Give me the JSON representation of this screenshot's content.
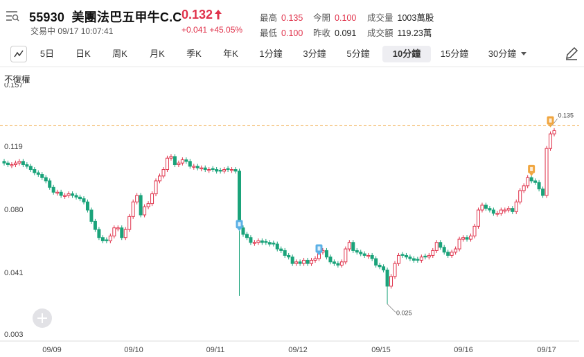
{
  "header": {
    "code": "55930",
    "name": "美團法巴五甲牛C.C",
    "price": "0.132",
    "status": "交易中 09/17 10:07:41",
    "change": "+0.041 +45.05%",
    "stats": [
      {
        "label": "最高",
        "value": "0.135",
        "color": "red"
      },
      {
        "label": "今開",
        "value": "0.100",
        "color": "red"
      },
      {
        "label": "成交量",
        "value": "1003萬股",
        "color": "black"
      },
      {
        "label": "最低",
        "value": "0.100",
        "color": "red"
      },
      {
        "label": "昨收",
        "value": "0.091",
        "color": "black"
      },
      {
        "label": "成交額",
        "value": "119.23萬",
        "color": "black"
      }
    ]
  },
  "tabs": [
    "5日",
    "日K",
    "周K",
    "月K",
    "季K",
    "年K",
    "1分鐘",
    "3分鐘",
    "5分鐘",
    "10分鐘",
    "15分鐘",
    "30分鐘"
  ],
  "active_tab": "10分鐘",
  "adjust_label": "不復權",
  "colors": {
    "up": "#e0324b",
    "down": "#1aa37a",
    "dashed": "#f0a640",
    "marker_blue": "#5bb0e6",
    "marker_orange": "#f0a640"
  },
  "icons": [
    "menu-search-icon",
    "chart-type-icon",
    "dropdown-caret-icon",
    "pen-icon",
    "plus-icon",
    "up-arrow-icon",
    "marker-b-icon",
    "marker-s-icon"
  ],
  "chart_data": {
    "type": "candlestick",
    "x_labels": [
      "09/09",
      "09/10",
      "09/11",
      "09/12",
      "09/15",
      "09/16",
      "09/17"
    ],
    "y_ticks": [
      "0.157",
      "0.119",
      "0.080",
      "0.041",
      "0.003"
    ],
    "ylim": [
      0.003,
      0.157
    ],
    "high_line": 0.135,
    "annotations": [
      {
        "label": "0.135",
        "value": 0.135
      },
      {
        "label": "0.025",
        "value": 0.025
      }
    ],
    "close_path": [
      0.112,
      0.111,
      0.111,
      0.112,
      0.113,
      0.111,
      0.11,
      0.108,
      0.106,
      0.105,
      0.103,
      0.101,
      0.097,
      0.094,
      0.094,
      0.092,
      0.092,
      0.093,
      0.092,
      0.091,
      0.09,
      0.088,
      0.083,
      0.076,
      0.071,
      0.066,
      0.064,
      0.064,
      0.067,
      0.072,
      0.072,
      0.066,
      0.071,
      0.079,
      0.088,
      0.092,
      0.08,
      0.085,
      0.087,
      0.093,
      0.101,
      0.104,
      0.108,
      0.115,
      0.116,
      0.111,
      0.112,
      0.114,
      0.113,
      0.11,
      0.11,
      0.109,
      0.109,
      0.108,
      0.108,
      0.108,
      0.107,
      0.107,
      0.108,
      0.108,
      0.108,
      0.107,
      0.072,
      0.068,
      0.066,
      0.063,
      0.063,
      0.064,
      0.063,
      0.063,
      0.062,
      0.062,
      0.059,
      0.058,
      0.055,
      0.054,
      0.05,
      0.051,
      0.05,
      0.052,
      0.05,
      0.052,
      0.053,
      0.057,
      0.058,
      0.054,
      0.051,
      0.05,
      0.049,
      0.051,
      0.059,
      0.063,
      0.058,
      0.057,
      0.056,
      0.055,
      0.055,
      0.053,
      0.049,
      0.048,
      0.046,
      0.036,
      0.042,
      0.05,
      0.055,
      0.055,
      0.054,
      0.053,
      0.052,
      0.052,
      0.054,
      0.054,
      0.055,
      0.058,
      0.063,
      0.06,
      0.057,
      0.055,
      0.057,
      0.059,
      0.065,
      0.066,
      0.065,
      0.067,
      0.073,
      0.083,
      0.086,
      0.084,
      0.083,
      0.081,
      0.081,
      0.083,
      0.083,
      0.084,
      0.082,
      0.088,
      0.095,
      0.098,
      0.103,
      0.101,
      0.1,
      0.096,
      0.092,
      0.121,
      0.13,
      0.132
    ]
  }
}
